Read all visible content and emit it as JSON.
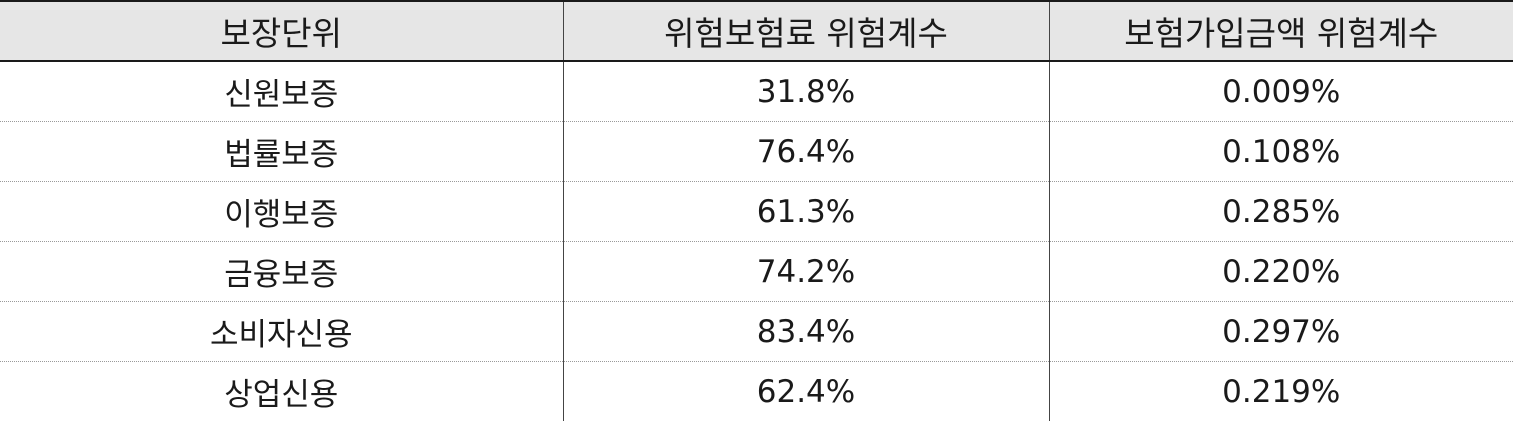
{
  "table": {
    "headers": [
      "보장단위",
      "위험보험료 위험계수",
      "보험가입금액 위험계수"
    ],
    "rows": [
      [
        "신원보증",
        "31.8%",
        "0.009%"
      ],
      [
        "법률보증",
        "76.4%",
        "0.108%"
      ],
      [
        "이행보증",
        "61.3%",
        "0.285%"
      ],
      [
        "금융보증",
        "74.2%",
        "0.220%"
      ],
      [
        "소비자신용",
        "83.4%",
        "0.297%"
      ],
      [
        "상업신용",
        "62.4%",
        "0.219%"
      ]
    ]
  },
  "colors": {
    "header_bg": "#e6e6e6",
    "text": "#1a1a1a",
    "rule": "#1a1a1a"
  }
}
